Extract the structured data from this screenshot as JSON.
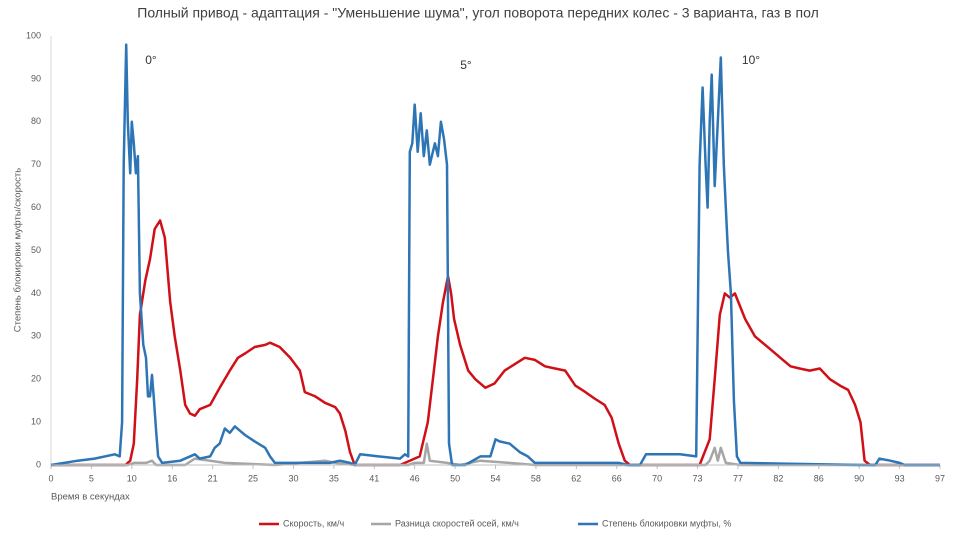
{
  "chart_data": {
    "type": "line",
    "title": "Полный привод - адаптация - \"Уменьшение шума\",  угол поворота передних колес  - 3 варианта, газ в пол",
    "x_label": "Время в секундах",
    "y_label": "Степень блокировки муфты/скорость",
    "annotations": [
      "0°",
      "5°",
      "10°"
    ],
    "xlim": [
      0,
      97
    ],
    "xticks": [
      0,
      5,
      10,
      16,
      21,
      25,
      30,
      35,
      41,
      46,
      50,
      54,
      58,
      62,
      66,
      70,
      73,
      77,
      82,
      86,
      90,
      93,
      97
    ],
    "ylim": [
      0,
      100
    ],
    "yticks": [
      0,
      10,
      20,
      30,
      40,
      50,
      60,
      70,
      80,
      90,
      100
    ],
    "grid": false,
    "legend": "bottom",
    "series": [
      {
        "name": "Скорость, км/ч",
        "color": "#d00f16",
        "x": [
          0,
          9.2,
          9.8,
          10.3,
          10.8,
          11.2,
          12.0,
          12.7,
          13.4,
          14.2,
          14.9,
          15.7,
          16.3,
          17.0,
          17.6,
          18.2,
          18.8,
          19.4,
          20.7,
          21.7,
          22.7,
          23.5,
          24.2,
          25.2,
          26.5,
          27.1,
          28.3,
          29.6,
          30.8,
          31.4,
          32.7,
          33.9,
          35.2,
          35.9,
          36.7,
          37.4,
          38.1,
          44.2,
          46.5,
          47.3,
          47.8,
          48.3,
          48.8,
          49.3,
          49.6,
          49.9,
          50.5,
          51.3,
          52.0,
          53.0,
          53.9,
          54.9,
          55.9,
          56.9,
          57.9,
          58.9,
          59.9,
          60.9,
          61.9,
          62.9,
          63.8,
          64.8,
          65.5,
          66.2,
          66.8,
          67.3,
          73.2,
          74.2,
          74.7,
          75.2,
          75.7,
          76.2,
          76.7,
          77.9,
          79.1,
          81.0,
          82.2,
          83.2,
          84.1,
          85.1,
          86.1,
          87.1,
          88.1,
          88.9,
          89.6,
          90.1,
          90.4,
          90.8,
          97
        ],
        "values": [
          0,
          0,
          1,
          5,
          20,
          35,
          43,
          48,
          55,
          57,
          53,
          38,
          30,
          22,
          14,
          12,
          11.5,
          13,
          14,
          18,
          22,
          25,
          26,
          27.5,
          28,
          28.5,
          27.5,
          25,
          22,
          17,
          16,
          14.5,
          13.5,
          12,
          8,
          3,
          0,
          0,
          2,
          10,
          20,
          30,
          38,
          44,
          40,
          34,
          28,
          22,
          20,
          18,
          19,
          22,
          23.5,
          25,
          24.5,
          23,
          22.5,
          22,
          18.5,
          17,
          15.5,
          14,
          11,
          5,
          1,
          0,
          0,
          6,
          20,
          35,
          40,
          39,
          40,
          34,
          30,
          27,
          25,
          23,
          22.5,
          22,
          22.5,
          20,
          18.5,
          17.5,
          14,
          10,
          1,
          0,
          0
        ]
      },
      {
        "name": "Разница скоростей осей, км/ч",
        "color": "#a6a6a6",
        "x": [
          0,
          9.5,
          10.3,
          12.1,
          13.0,
          13.6,
          17.6,
          18.8,
          20.7,
          22.2,
          27.7,
          33.9,
          35.2,
          38.1,
          45.2,
          46.0,
          46.9,
          47.2,
          47.5,
          49.2,
          50.5,
          52.5,
          55.4,
          57.9,
          73.8,
          74.2,
          74.7,
          75.0,
          75.3,
          75.8,
          77.3,
          97
        ],
        "values": [
          0,
          0,
          0.5,
          0.5,
          1,
          0,
          0,
          1.5,
          1,
          0.5,
          0,
          1,
          0.5,
          0,
          0,
          0.5,
          0.5,
          5,
          1,
          0.5,
          0,
          1,
          0.5,
          0,
          0,
          1,
          4,
          1,
          4,
          0.5,
          0,
          0
        ]
      },
      {
        "name": "Степень блокировки муфты, %",
        "color": "#2e75b6",
        "x": [
          0,
          3.3,
          5.4,
          7.9,
          8.5,
          8.8,
          9.0,
          9.3,
          9.5,
          9.8,
          10.0,
          10.3,
          10.6,
          10.9,
          11.2,
          11.7,
          12.1,
          12.4,
          12.7,
          13.0,
          13.3,
          13.6,
          13.9,
          14.5,
          17.0,
          18.8,
          19.4,
          20.7,
          21.2,
          21.7,
          22.2,
          22.7,
          23.2,
          23.7,
          24.2,
          25.2,
          26.5,
          27.1,
          27.7,
          34.5,
          35.9,
          37.4,
          38.1,
          38.9,
          41.5,
          44.2,
          44.8,
          45.2,
          45.4,
          45.7,
          46.0,
          46.3,
          46.6,
          46.9,
          47.2,
          47.5,
          48.0,
          48.3,
          48.6,
          48.9,
          49.2,
          49.4,
          49.7,
          51.0,
          52.5,
          53.5,
          54.0,
          54.4,
          55.4,
          56.4,
          57.2,
          57.9,
          66.2,
          67.1,
          68.3,
          68.9,
          71.7,
          72.9,
          73.2,
          73.5,
          73.8,
          74.0,
          74.2,
          74.4,
          74.7,
          75.0,
          75.3,
          75.6,
          75.8,
          76.0,
          76.3,
          76.6,
          76.9,
          77.3,
          90.1,
          91.2,
          91.5,
          92.3,
          93.0,
          93.5,
          97
        ],
        "values": [
          0,
          1,
          1.5,
          2.5,
          2,
          10,
          70,
          98,
          80,
          68,
          80,
          75,
          68,
          72,
          40,
          28,
          25,
          16,
          16,
          21,
          15,
          8,
          2,
          0.5,
          1,
          2.5,
          1.5,
          2,
          4,
          5,
          8.5,
          7.5,
          9,
          8,
          7,
          5.5,
          4,
          2,
          0.5,
          0.5,
          1,
          0.5,
          0,
          2.5,
          2,
          1.5,
          2.5,
          2,
          73,
          75,
          84,
          73,
          82,
          72,
          78,
          70,
          75,
          72,
          80,
          76,
          70,
          5,
          0,
          0,
          2,
          2,
          6,
          5.5,
          5,
          3,
          2,
          0.5,
          0.5,
          0,
          0,
          2.5,
          2.5,
          2,
          70,
          88,
          70,
          60,
          80,
          91,
          65,
          80,
          95,
          70,
          60,
          50,
          40,
          15,
          2,
          0.5,
          0,
          0,
          1.5,
          1,
          0.5,
          0,
          0
        ]
      }
    ]
  }
}
